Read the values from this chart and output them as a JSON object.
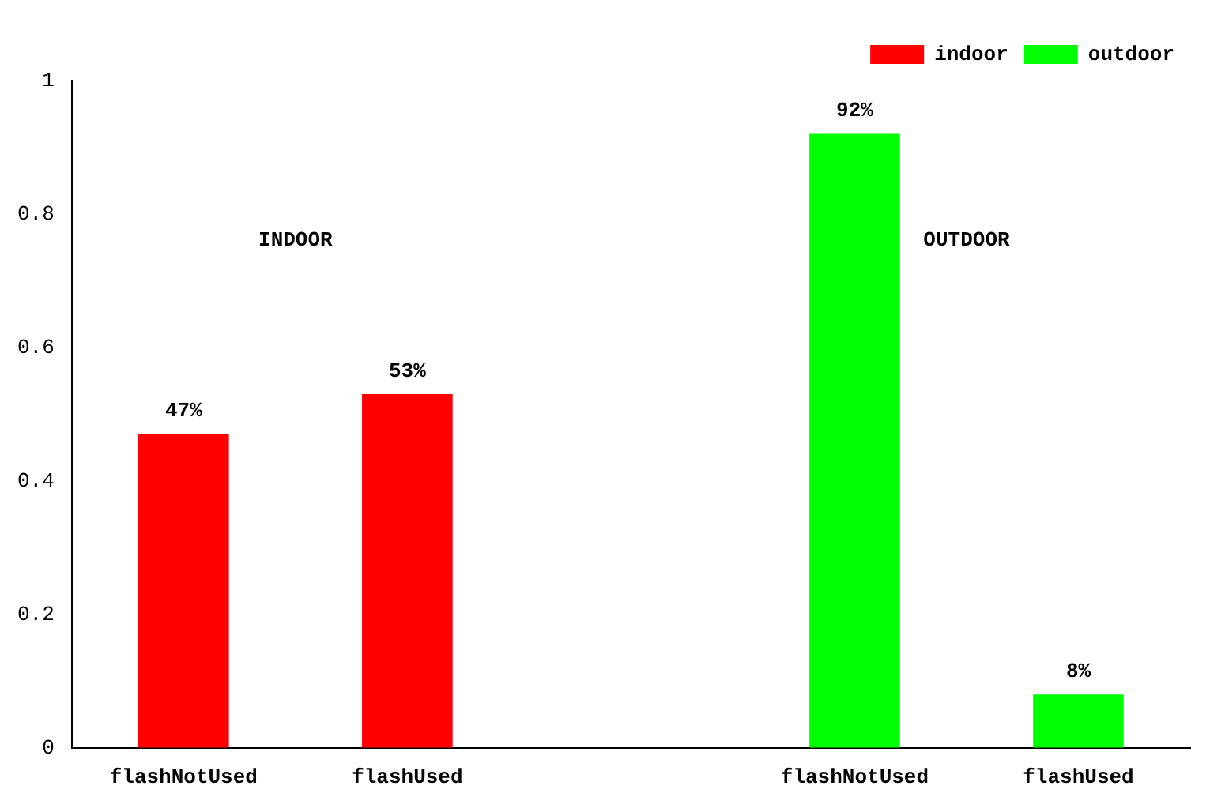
{
  "chart_data": {
    "type": "bar",
    "categories": [
      "flashNotUsed",
      "flashUsed",
      null,
      "flashNotUsed",
      "flashUsed"
    ],
    "series": [
      {
        "name": "indoor",
        "color": "#ff0000",
        "values": [
          0.47,
          0.53,
          null,
          null,
          null
        ],
        "value_labels": [
          "47%",
          "53%",
          null,
          null,
          null
        ]
      },
      {
        "name": "outdoor",
        "color": "#00ff00",
        "values": [
          null,
          null,
          null,
          0.92,
          0.08
        ],
        "value_labels": [
          null,
          null,
          null,
          "92%",
          "8%"
        ]
      }
    ],
    "ylim": [
      0,
      1
    ],
    "yticks": [
      0,
      0.2,
      0.4,
      0.6,
      0.8,
      1
    ],
    "grid": false,
    "legend": "top right",
    "annotations": [
      "INDOOR",
      "OUTDOOR"
    ]
  }
}
